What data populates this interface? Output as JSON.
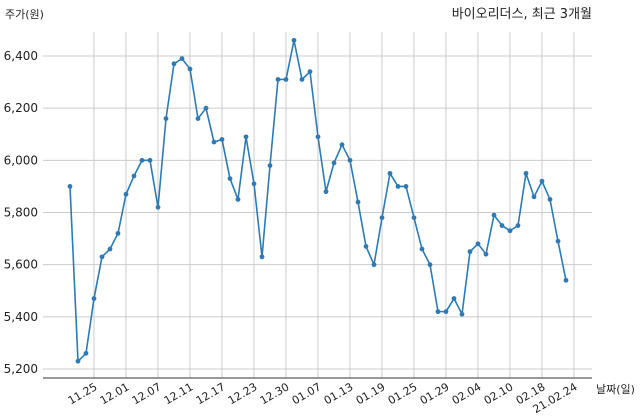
{
  "chart_data": {
    "type": "line",
    "title": "바이오리더스, 최근 3개월",
    "xlabel": "날짜(일)",
    "ylabel": "주가(원)",
    "ylim": [
      5200,
      6500
    ],
    "yticks": [
      5200,
      5400,
      5600,
      5800,
      6000,
      6200,
      6400
    ],
    "ytick_labels": [
      "5,200",
      "5,400",
      "5,600",
      "5,800",
      "6,000",
      "6,200",
      "6,400"
    ],
    "xtick_labels": [
      "11.25",
      "12.01",
      "12.07",
      "12.11",
      "12.17",
      "12.23",
      "12.30",
      "01.07",
      "01.13",
      "01.19",
      "01.25",
      "01.29",
      "02.04",
      "02.10",
      "02.18",
      "21.02.24"
    ],
    "xtick_index": [
      3,
      7,
      11,
      15,
      19,
      23,
      27,
      31,
      35,
      39,
      43,
      47,
      51,
      55,
      59,
      63
    ],
    "grid": true,
    "colors": {
      "line": "#2b7bb9"
    },
    "series": [
      {
        "name": "",
        "values": [
          5900,
          5230,
          5260,
          5470,
          5630,
          5660,
          5720,
          5870,
          5940,
          6000,
          6000,
          5820,
          6160,
          6370,
          6390,
          6350,
          6160,
          6200,
          6070,
          6080,
          5930,
          5850,
          6090,
          5910,
          5630,
          5980,
          6310,
          6310,
          6460,
          6310,
          6340,
          6090,
          5880,
          5990,
          6060,
          6000,
          5840,
          5670,
          5600,
          5780,
          5950,
          5900,
          5900,
          5780,
          5660,
          5600,
          5420,
          5420,
          5470,
          5410,
          5650,
          5680,
          5640,
          5790,
          5750,
          5730,
          5750,
          5950,
          5860,
          5920,
          5850,
          5690,
          5540
        ]
      }
    ]
  }
}
